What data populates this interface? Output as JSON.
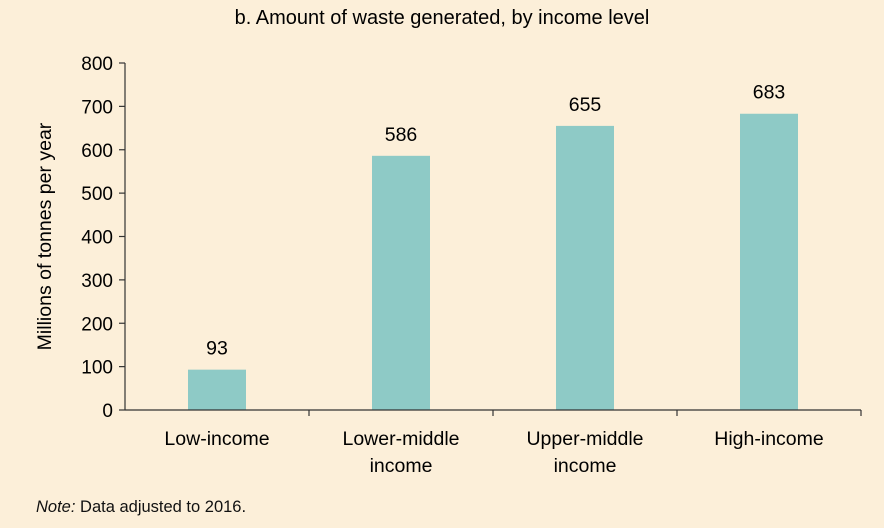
{
  "chart_data": {
    "type": "bar",
    "title": "b. Amount of waste generated, by income level",
    "xlabel": "",
    "ylabel": "Millions of tonnes per year",
    "categories": [
      [
        "Low-income"
      ],
      [
        "Lower-middle",
        "income"
      ],
      [
        "Upper-middle",
        "income"
      ],
      [
        "High-income"
      ]
    ],
    "values": [
      93,
      586,
      655,
      683
    ],
    "data_labels": [
      "93",
      "586",
      "655",
      "683"
    ],
    "ylim": [
      0,
      800
    ],
    "yticks": [
      0,
      100,
      200,
      300,
      400,
      500,
      600,
      700,
      800
    ],
    "grid": false,
    "legend": "none",
    "bar_color": "#8ecac6"
  },
  "note": {
    "label": "Note:",
    "text": "Data adjusted to 2016."
  },
  "colors": {
    "background": "#fcefd9",
    "axis": "#333333",
    "bar": "#8ecac6"
  }
}
